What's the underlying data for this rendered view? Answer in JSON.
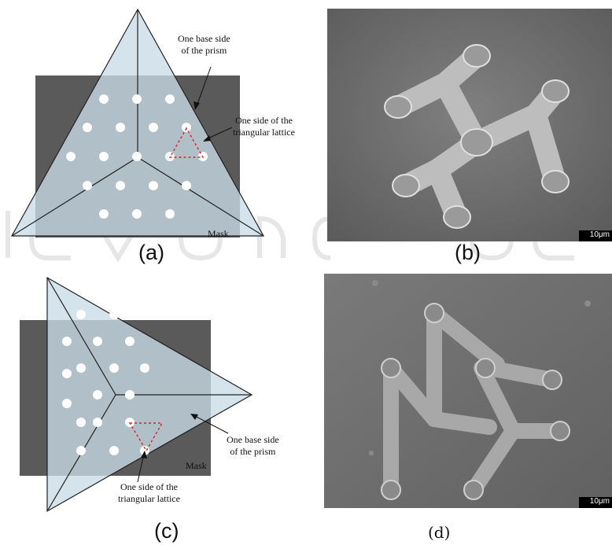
{
  "panels": {
    "a": {
      "caption": "(a)",
      "annotation_prism": [
        "One base side",
        "of the prism"
      ],
      "annotation_lattice": [
        "One side of the",
        "triangular lattice"
      ],
      "mask_label": "Mask"
    },
    "b": {
      "caption": "(b)",
      "scale_label": "10μm"
    },
    "c": {
      "caption": "(c)",
      "annotation_prism": [
        "One base side",
        "of the prism"
      ],
      "annotation_lattice": [
        "One side of the",
        "triangular lattice"
      ],
      "mask_label": "Mask"
    },
    "d": {
      "caption": "(d)",
      "scale_label": "10μm"
    }
  },
  "colors": {
    "mask": "#5a5a5a",
    "prism_fill": "#c9dbe8",
    "lattice_marker": "#e0201b",
    "sem_background": "#6e6e6e"
  }
}
